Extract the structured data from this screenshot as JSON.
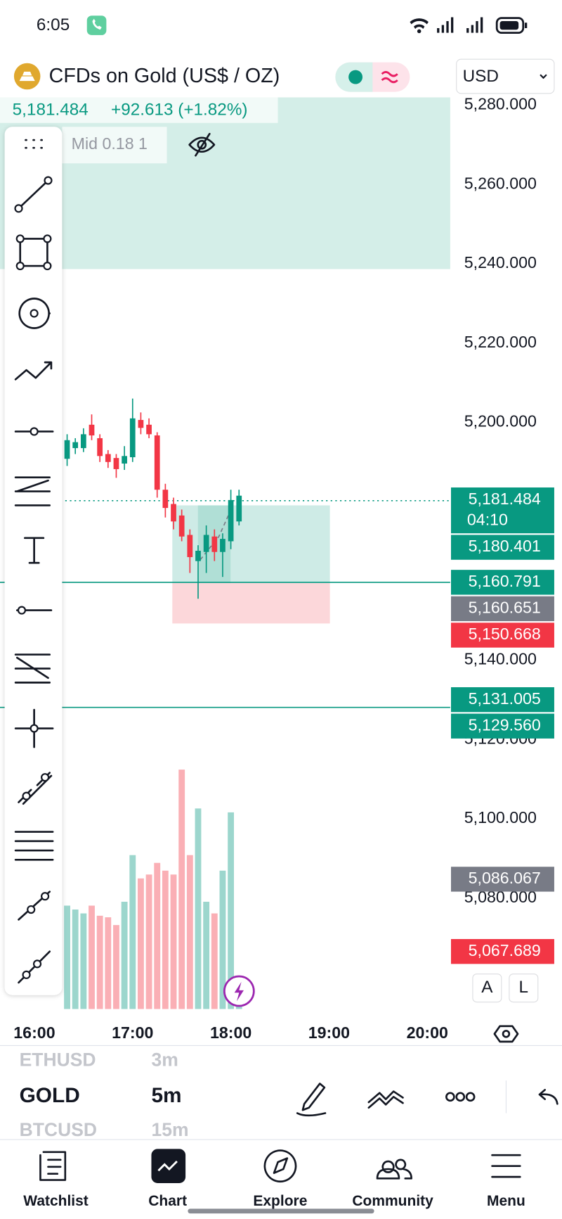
{
  "status_bar": {
    "time": "6:05"
  },
  "header": {
    "symbol": "CFDs on Gold (US$ / OZ)",
    "currency": "USD"
  },
  "quote": {
    "price": "5,181.484",
    "change": "+92.613 (+1.82%)",
    "mid": "Mid 0.18 1"
  },
  "chart_data": {
    "type": "candlestick",
    "x": [
      "16:20",
      "16:25",
      "16:30",
      "16:35",
      "16:40",
      "16:45",
      "16:50",
      "16:55",
      "17:00",
      "17:05",
      "17:10",
      "17:15",
      "17:20",
      "17:25",
      "17:30",
      "17:35",
      "17:40",
      "17:45",
      "17:50",
      "17:55",
      "18:00",
      "18:05"
    ],
    "open": [
      5190.8,
      5193.5,
      5193.5,
      5199.4,
      5196,
      5192,
      5191,
      5189.6,
      5191.2,
      5200.6,
      5199.4,
      5196.7,
      5183,
      5179.4,
      5176.5,
      5171.6,
      5165,
      5167.3,
      5171.2,
      5167.3,
      5170,
      5175
    ],
    "high": [
      5197,
      5196,
      5198.5,
      5202,
      5197,
      5193,
      5192,
      5194,
      5206,
      5202.5,
      5201,
      5197.5,
      5184.5,
      5181,
      5178,
      5173,
      5169,
      5174,
      5173,
      5172,
      5183,
      5183
    ],
    "low": [
      5189,
      5192,
      5192.5,
      5195.5,
      5190,
      5188.5,
      5186,
      5188,
      5190,
      5197,
      5196,
      5181,
      5176,
      5173,
      5170,
      5162,
      5155.5,
      5162,
      5165,
      5161,
      5168,
      5174
    ],
    "close": [
      5195.5,
      5195,
      5197,
      5196.7,
      5191.5,
      5190,
      5188.2,
      5191.5,
      5201,
      5198.6,
      5197,
      5183,
      5178.4,
      5175,
      5171.2,
      5166,
      5167.6,
      5171.6,
      5167.3,
      5170.6,
      5180.4,
      5181.5
    ],
    "volume": [
      133,
      128,
      123,
      133,
      120,
      118,
      108,
      138,
      198,
      168,
      173,
      188,
      178,
      173,
      308,
      198,
      258,
      138,
      123,
      178,
      253,
      10
    ],
    "volume_lim": [
      0,
      340
    ],
    "up_color": "#089981",
    "down_color": "#f23645",
    "ylim": [
      5052,
      5282
    ],
    "yticks": [
      {
        "value": 5280,
        "label": "5,280.000"
      },
      {
        "value": 5260,
        "label": "5,260.000"
      },
      {
        "value": 5240,
        "label": "5,240.000"
      },
      {
        "value": 5220,
        "label": "5,220.000"
      },
      {
        "value": 5200,
        "label": "5,200.000"
      },
      {
        "value": 5140,
        "label": "5,140.000"
      },
      {
        "value": 5120,
        "label": "5,120.000"
      },
      {
        "value": 5100,
        "label": "5,100.000"
      },
      {
        "value": 5080,
        "label": "5,080.000"
      }
    ],
    "xlim": [
      "15:39",
      "20:14"
    ],
    "xticks": [
      "16:00",
      "17:00",
      "18:00",
      "19:00",
      "20:00"
    ],
    "price_badges": [
      {
        "label": "5,181.484",
        "sub": "04:10",
        "color": "#089981"
      },
      {
        "label": "5,180.401",
        "color": "#089981"
      },
      {
        "label": "5,160.791",
        "color": "#089981"
      },
      {
        "label": "5,160.651",
        "color": "#787b86"
      },
      {
        "label": "5,150.668",
        "color": "#f23645"
      },
      {
        "label": "5,131.005",
        "color": "#089981"
      },
      {
        "label": "5,129.560",
        "color": "#089981"
      },
      {
        "label": "5,086.067",
        "color": "#787b86"
      },
      {
        "label": "5,067.689",
        "color": "#f23645"
      }
    ]
  },
  "scale_buttons": [
    "A",
    "L"
  ],
  "symbol_picker": {
    "prev": [
      "ETHUSD",
      "3m"
    ],
    "current": [
      "GOLD",
      "5m"
    ],
    "next": [
      "BTCUSD",
      "15m"
    ]
  },
  "nav": [
    "Watchlist",
    "Chart",
    "Explore",
    "Community",
    "Menu"
  ]
}
